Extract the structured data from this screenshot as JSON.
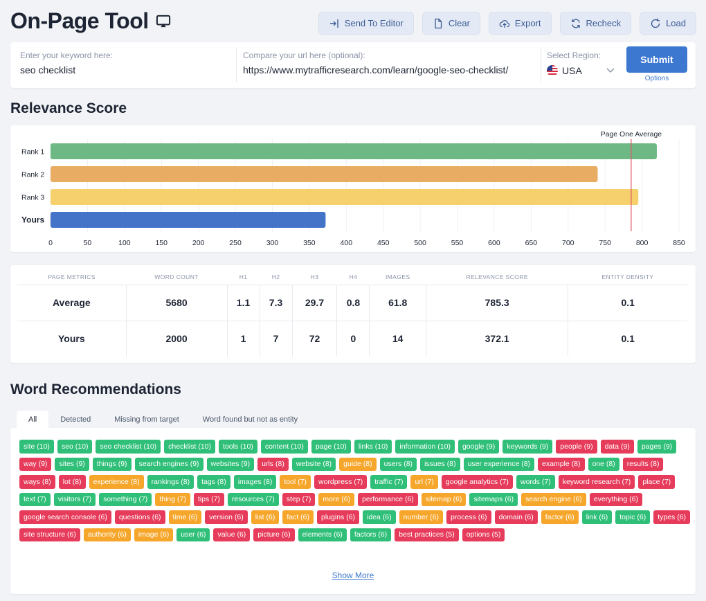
{
  "header": {
    "title": "On-Page Tool",
    "buttons": [
      {
        "label": "Send To Editor",
        "icon": "send-to-editor-icon"
      },
      {
        "label": "Clear",
        "icon": "document-icon"
      },
      {
        "label": "Export",
        "icon": "cloud-upload-icon"
      },
      {
        "label": "Recheck",
        "icon": "refresh-icon"
      },
      {
        "label": "Load",
        "icon": "reload-icon"
      }
    ]
  },
  "search": {
    "keyword_label": "Enter your keyword here:",
    "keyword_value": "seo checklist",
    "url_label": "Compare your url here (optional):",
    "url_value": "https://www.mytrafficresearch.com/learn/google-seo-checklist/",
    "region_label": "Select Region:",
    "region_value": "USA",
    "submit_label": "Submit",
    "options_label": "Options"
  },
  "relevance": {
    "heading": "Relevance Score"
  },
  "chart_data": {
    "type": "bar",
    "orientation": "horizontal",
    "categories": [
      "Rank 1",
      "Rank 2",
      "Rank 3",
      "Yours"
    ],
    "values": [
      820,
      740,
      795,
      372
    ],
    "colors": [
      "#6db885",
      "#e9ac63",
      "#f5d06c",
      "#4374c7"
    ],
    "xlim": [
      0,
      850
    ],
    "xticks": [
      0,
      50,
      100,
      150,
      200,
      250,
      300,
      350,
      400,
      450,
      500,
      550,
      600,
      650,
      700,
      750,
      800,
      850
    ],
    "reference_line": {
      "label": "Page One Average",
      "value": 785.3,
      "color": "#e05a6a"
    },
    "grid": true
  },
  "metrics": {
    "headers": [
      "PAGE METRICS",
      "WORD COUNT",
      "H1",
      "H2",
      "H3",
      "H4",
      "IMAGES",
      "RELEVANCE SCORE",
      "ENTITY DENSITY"
    ],
    "rows": [
      [
        "Average",
        "5680",
        "1.1",
        "7.3",
        "29.7",
        "0.8",
        "61.8",
        "785.3",
        "0.1"
      ],
      [
        "Yours",
        "2000",
        "1",
        "7",
        "72",
        "0",
        "14",
        "372.1",
        "0.1"
      ]
    ]
  },
  "words": {
    "heading": "Word Recommendations",
    "tabs": [
      "All",
      "Detected",
      "Missing from target",
      "Word found but not as entity"
    ],
    "active_tab": 0,
    "colors": {
      "detected": "#2fbf78",
      "missing": "#e63b5a",
      "not_entity": "#f6a62a"
    },
    "chips": [
      {
        "t": "site (10)",
        "c": "g"
      },
      {
        "t": "seo (10)",
        "c": "g"
      },
      {
        "t": "seo checklist (10)",
        "c": "g"
      },
      {
        "t": "checklist (10)",
        "c": "g"
      },
      {
        "t": "tools (10)",
        "c": "g"
      },
      {
        "t": "content (10)",
        "c": "g"
      },
      {
        "t": "page (10)",
        "c": "g"
      },
      {
        "t": "links (10)",
        "c": "g"
      },
      {
        "t": "information (10)",
        "c": "g"
      },
      {
        "t": "google (9)",
        "c": "g"
      },
      {
        "t": "keywords (9)",
        "c": "g"
      },
      {
        "t": "people (9)",
        "c": "r"
      },
      {
        "t": "data (9)",
        "c": "r"
      },
      {
        "t": "pages (9)",
        "c": "g"
      },
      {
        "t": "way (9)",
        "c": "r"
      },
      {
        "t": "sites (9)",
        "c": "g"
      },
      {
        "t": "things (9)",
        "c": "g"
      },
      {
        "t": "search engines (9)",
        "c": "g"
      },
      {
        "t": "websites (9)",
        "c": "g"
      },
      {
        "t": "urls (8)",
        "c": "r"
      },
      {
        "t": "website (8)",
        "c": "g"
      },
      {
        "t": "guide (8)",
        "c": "o"
      },
      {
        "t": "users (8)",
        "c": "g"
      },
      {
        "t": "issues (8)",
        "c": "g"
      },
      {
        "t": "user experience (8)",
        "c": "g"
      },
      {
        "t": "example (8)",
        "c": "r"
      },
      {
        "t": "one (8)",
        "c": "g"
      },
      {
        "t": "results (8)",
        "c": "r"
      },
      {
        "t": "ways (8)",
        "c": "r"
      },
      {
        "t": "lot (8)",
        "c": "r"
      },
      {
        "t": "experience (8)",
        "c": "o"
      },
      {
        "t": "rankings (8)",
        "c": "g"
      },
      {
        "t": "tags (8)",
        "c": "g"
      },
      {
        "t": "images (8)",
        "c": "g"
      },
      {
        "t": "tool (7)",
        "c": "o"
      },
      {
        "t": "wordpress (7)",
        "c": "r"
      },
      {
        "t": "traffic (7)",
        "c": "g"
      },
      {
        "t": "url (7)",
        "c": "o"
      },
      {
        "t": "google analytics (7)",
        "c": "r"
      },
      {
        "t": "words (7)",
        "c": "g"
      },
      {
        "t": "keyword research (7)",
        "c": "r"
      },
      {
        "t": "place (7)",
        "c": "r"
      },
      {
        "t": "text (7)",
        "c": "g"
      },
      {
        "t": "visitors (7)",
        "c": "g"
      },
      {
        "t": "something (7)",
        "c": "g"
      },
      {
        "t": "thing (7)",
        "c": "o"
      },
      {
        "t": "tips (7)",
        "c": "r"
      },
      {
        "t": "resources (7)",
        "c": "g"
      },
      {
        "t": "step (7)",
        "c": "r"
      },
      {
        "t": "more (6)",
        "c": "o"
      },
      {
        "t": "performance (6)",
        "c": "r"
      },
      {
        "t": "sitemap (6)",
        "c": "o"
      },
      {
        "t": "sitemaps (6)",
        "c": "g"
      },
      {
        "t": "search engine (6)",
        "c": "o"
      },
      {
        "t": "everything (6)",
        "c": "r"
      },
      {
        "t": "google search console (6)",
        "c": "r"
      },
      {
        "t": "questions (6)",
        "c": "r"
      },
      {
        "t": "time (6)",
        "c": "o"
      },
      {
        "t": "version (6)",
        "c": "r"
      },
      {
        "t": "list (6)",
        "c": "o"
      },
      {
        "t": "fact (6)",
        "c": "o"
      },
      {
        "t": "plugins (6)",
        "c": "r"
      },
      {
        "t": "idea (6)",
        "c": "g"
      },
      {
        "t": "number (6)",
        "c": "o"
      },
      {
        "t": "process (6)",
        "c": "r"
      },
      {
        "t": "domain (6)",
        "c": "r"
      },
      {
        "t": "factor (6)",
        "c": "o"
      },
      {
        "t": "link (6)",
        "c": "g"
      },
      {
        "t": "topic (6)",
        "c": "g"
      },
      {
        "t": "types (6)",
        "c": "r"
      },
      {
        "t": "site structure (6)",
        "c": "r"
      },
      {
        "t": "authority (6)",
        "c": "o"
      },
      {
        "t": "image (6)",
        "c": "o"
      },
      {
        "t": "user (6)",
        "c": "g"
      },
      {
        "t": "value (6)",
        "c": "r"
      },
      {
        "t": "picture (6)",
        "c": "r"
      },
      {
        "t": "elements (6)",
        "c": "g"
      },
      {
        "t": "factors (6)",
        "c": "g"
      },
      {
        "t": "best practices (5)",
        "c": "r"
      },
      {
        "t": "options (5)",
        "c": "r"
      }
    ],
    "show_more_label": "Show More"
  }
}
